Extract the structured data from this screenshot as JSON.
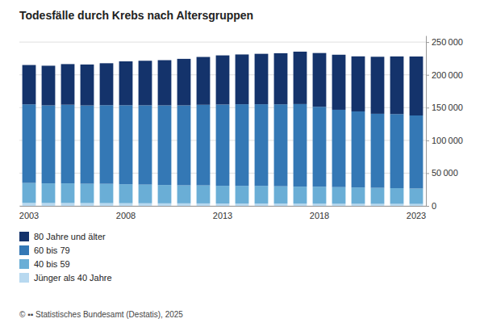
{
  "chart_data": {
    "type": "bar",
    "stacked": true,
    "title": "Todesfälle durch Krebs nach Altersgruppen",
    "categories": [
      "2003",
      null,
      null,
      null,
      null,
      "2008",
      null,
      null,
      null,
      null,
      "2013",
      null,
      null,
      null,
      null,
      "2018",
      null,
      null,
      null,
      null,
      "2023"
    ],
    "series": [
      {
        "name": "Jünger als 40 Jahre",
        "color": "#b8d9f0",
        "values": [
          4500,
          4400,
          4400,
          4300,
          4200,
          4100,
          4000,
          3900,
          3900,
          3800,
          3700,
          3600,
          3600,
          3500,
          3400,
          3300,
          3200,
          3200,
          3100,
          3100,
          3000
        ]
      },
      {
        "name": "40 bis 59",
        "color": "#6aaed6",
        "values": [
          30500,
          30000,
          30000,
          29500,
          29500,
          29000,
          28500,
          28000,
          27500,
          27500,
          27000,
          27000,
          27000,
          26500,
          26000,
          26000,
          25500,
          25000,
          24500,
          24000,
          23500
        ]
      },
      {
        "name": "60 bis 79",
        "color": "#3478b5",
        "values": [
          120000,
          119000,
          120000,
          119500,
          120000,
          120500,
          121000,
          121500,
          122000,
          123000,
          124000,
          124500,
          124500,
          125000,
          126000,
          122000,
          118000,
          116000,
          113000,
          113000,
          111500
        ]
      },
      {
        "name": "80 Jahre und älter",
        "color": "#14336b",
        "values": [
          60000,
          60500,
          62000,
          62500,
          64000,
          67000,
          68000,
          69000,
          71000,
          73000,
          75000,
          76000,
          77000,
          78000,
          80000,
          82000,
          84000,
          84000,
          87000,
          88000,
          90000
        ]
      }
    ],
    "ylim": [
      0,
      260000
    ],
    "yticks": [
      0,
      {
        "value": 50000,
        "label": "50 000"
      },
      {
        "value": 100000,
        "label": "100 000"
      },
      {
        "value": 150000,
        "label": "150 000"
      },
      {
        "value": 200000,
        "label": "200 000"
      },
      {
        "value": 250000,
        "label": "250 000"
      }
    ],
    "grid": true,
    "legend": "bottom-left",
    "annotations": [
      "© ▪▪ Statistisches Bundesamt (Destatis), 2025"
    ]
  }
}
